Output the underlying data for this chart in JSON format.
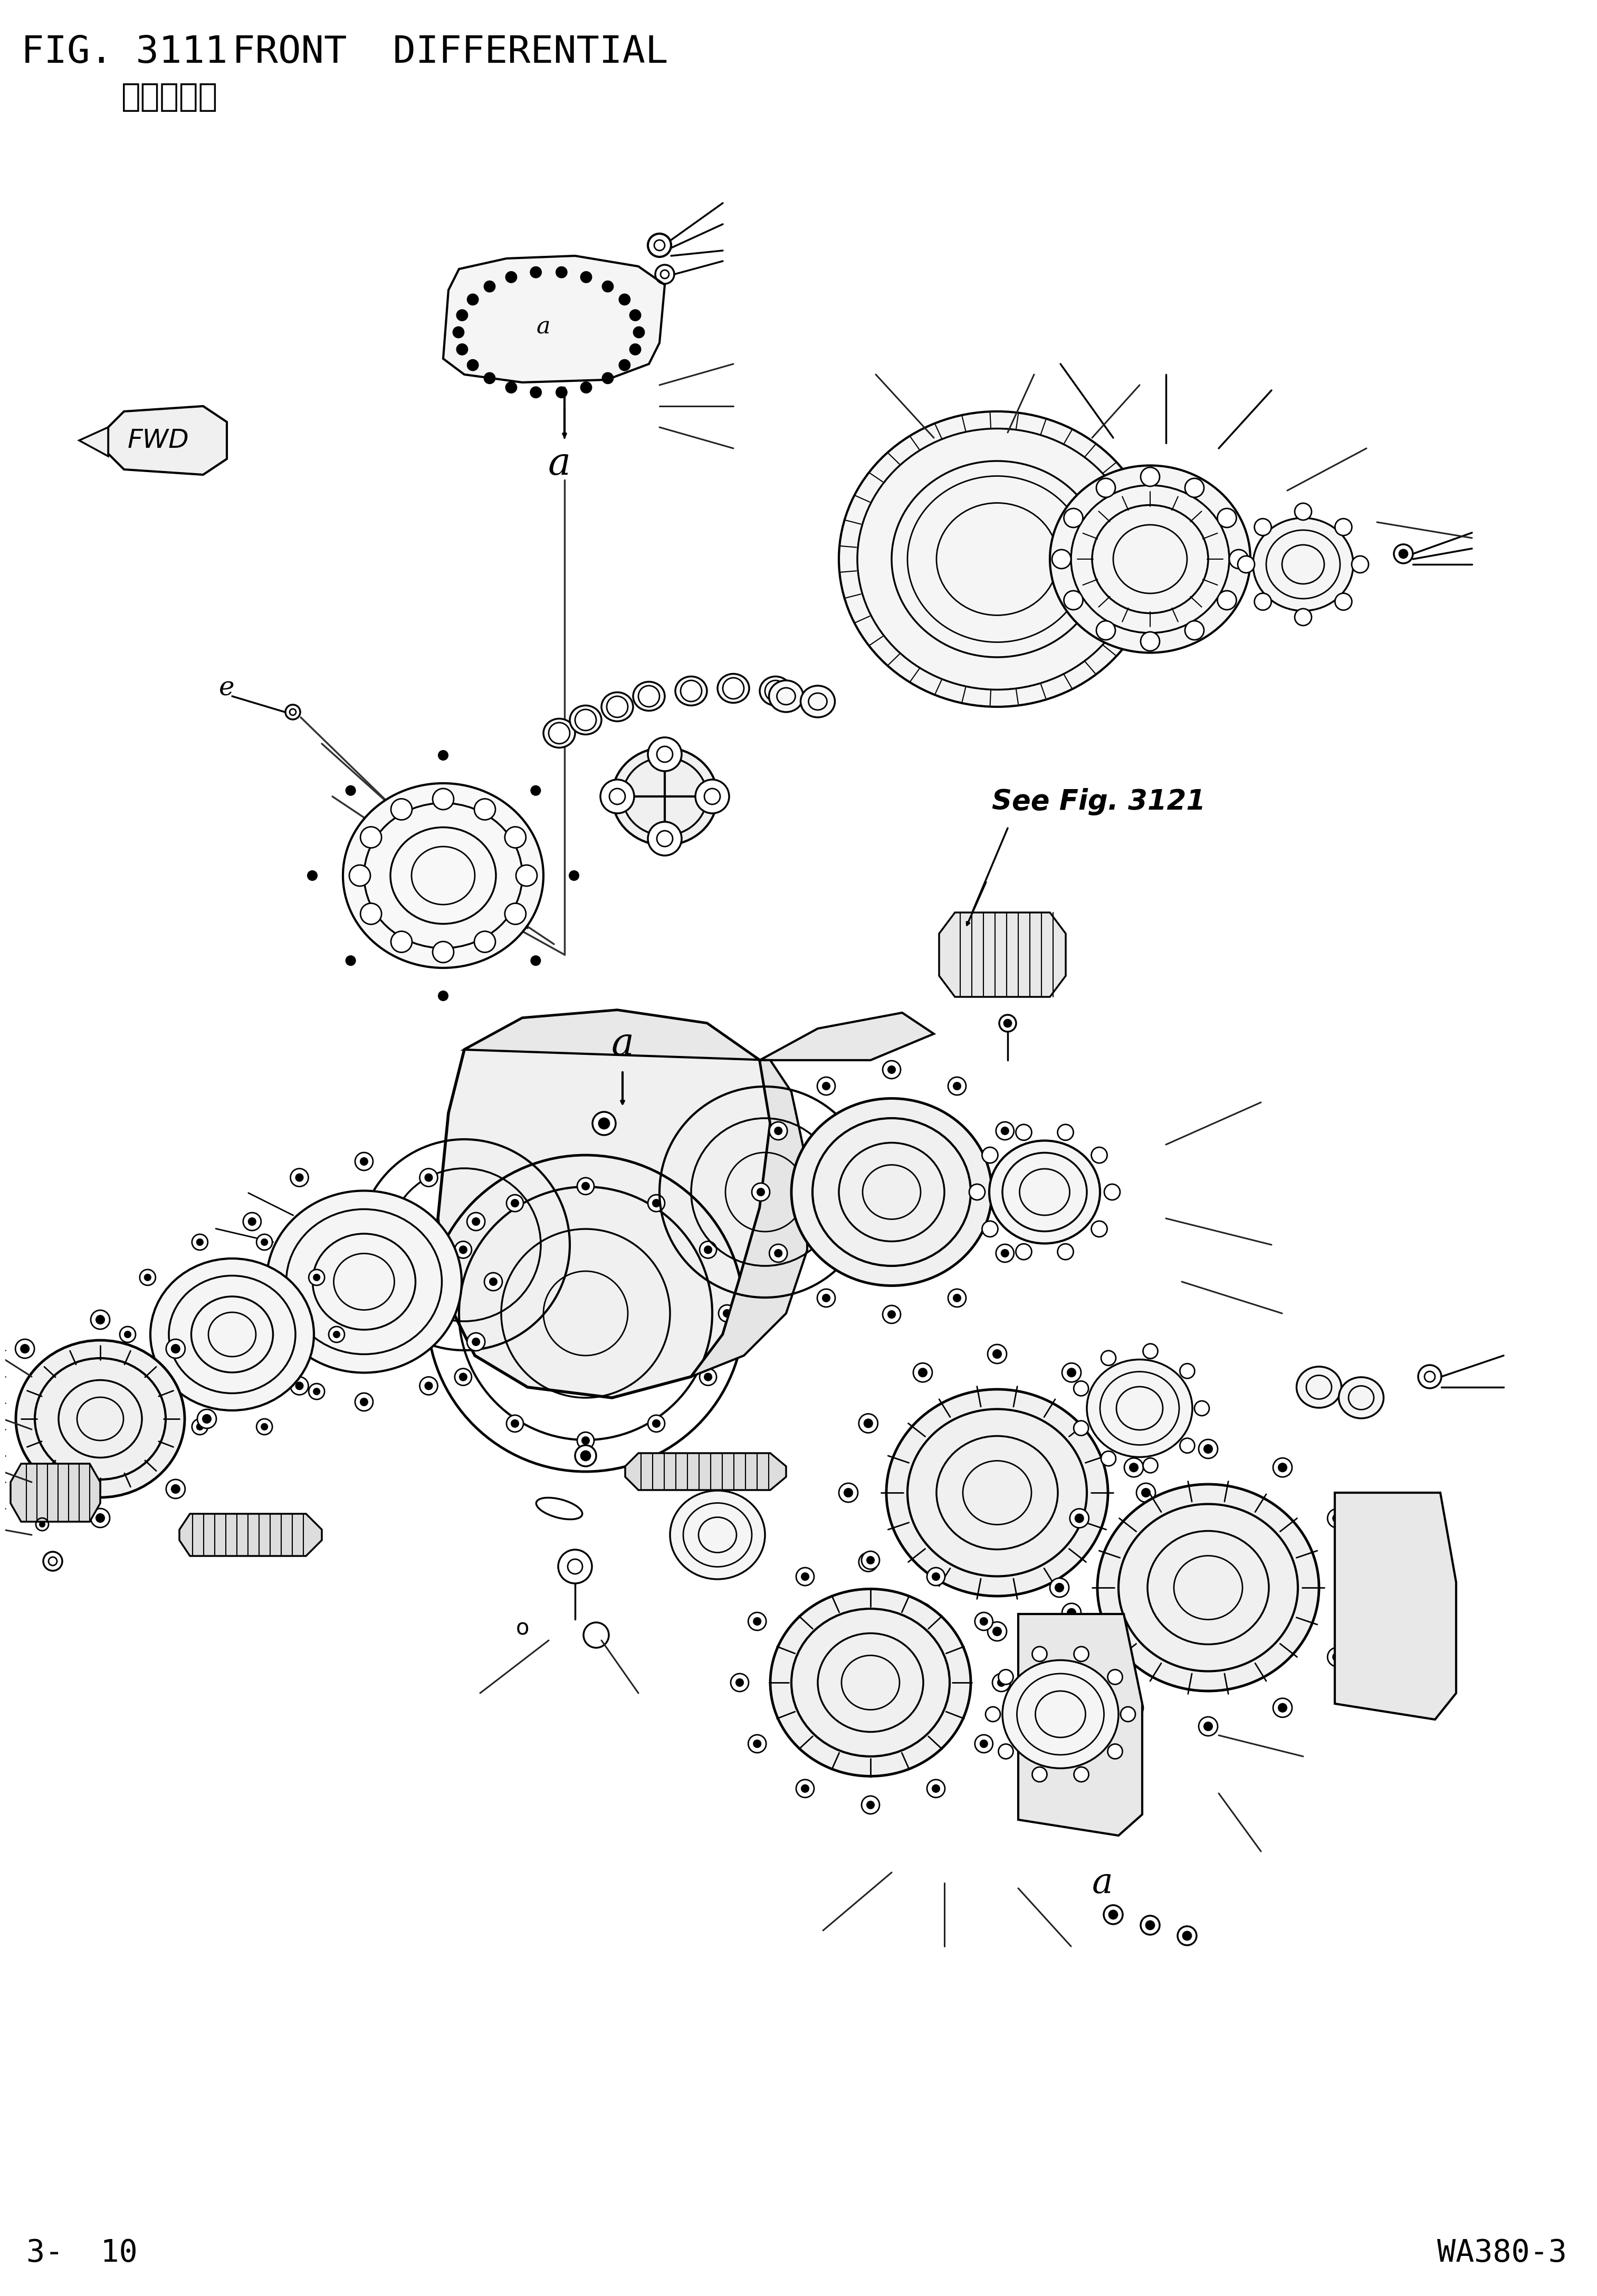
{
  "fig_number": "FIG. 3111",
  "title_en": "FRONT  DIFFERENTIAL",
  "title_cn": "前桥差速器",
  "footer_left": "3-  10",
  "footer_right": "WA380-3",
  "see_fig_text": "See Fig. 3121",
  "background_color": "#ffffff",
  "line_color": "#000000",
  "fig_width": 3007,
  "fig_height": 4333,
  "header_fontsize": 52,
  "subtitle_fontsize": 44,
  "footer_fontsize": 42,
  "see_fig_fontsize": 38,
  "annot_fontsize": 52
}
